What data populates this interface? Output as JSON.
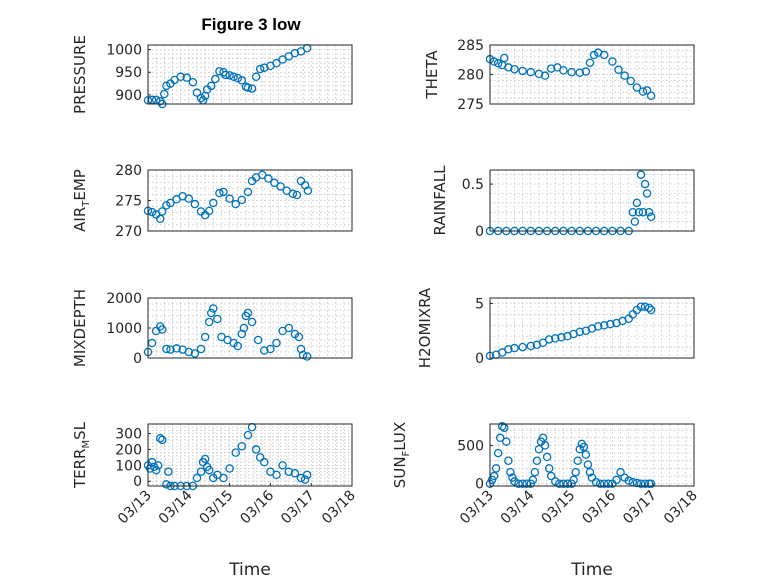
{
  "figure_title": "Figure 3 low",
  "chart_data": [
    {
      "type": "scatter",
      "id": "pressure",
      "ylabel": "PRESSURE",
      "title": "Figure 3 low",
      "xlabel": "",
      "xlim": [
        13,
        18.0
      ],
      "ylim": [
        880,
        1010
      ],
      "yticks": [
        900,
        950,
        1000
      ],
      "ytick_labels": [
        "900",
        "950",
        "1000"
      ],
      "grid": true,
      "series": [
        {
          "name": "PRESSURE",
          "x": [
            13.0,
            13.1,
            13.2,
            13.3,
            13.35,
            13.4,
            13.45,
            13.55,
            13.65,
            13.8,
            13.95,
            14.1,
            14.2,
            14.3,
            14.35,
            14.4,
            14.45,
            14.55,
            14.65,
            14.75,
            14.85,
            14.9,
            15.0,
            15.1,
            15.2,
            15.3,
            15.4,
            15.45,
            15.55,
            15.65,
            15.75,
            15.85,
            16.0,
            16.15,
            16.3,
            16.45,
            16.6,
            16.75,
            16.9
          ],
          "values": [
            888,
            889,
            889,
            886,
            880,
            902,
            920,
            925,
            933,
            940,
            938,
            928,
            905,
            893,
            888,
            898,
            912,
            920,
            935,
            952,
            950,
            944,
            943,
            940,
            937,
            932,
            918,
            916,
            914,
            940,
            957,
            960,
            964,
            970,
            978,
            985,
            992,
            996,
            1003
          ]
        }
      ]
    },
    {
      "type": "scatter",
      "id": "theta",
      "ylabel": "THETA",
      "xlabel": "",
      "xlim": [
        13,
        18.0
      ],
      "ylim": [
        275,
        285
      ],
      "yticks": [
        275,
        280,
        285
      ],
      "ytick_labels": [
        "275",
        "280",
        "285"
      ],
      "grid": true,
      "series": [
        {
          "name": "THETA",
          "x": [
            13.0,
            13.1,
            13.2,
            13.3,
            13.35,
            13.45,
            13.6,
            13.8,
            14.0,
            14.2,
            14.35,
            14.5,
            14.65,
            14.8,
            15.0,
            15.2,
            15.35,
            15.45,
            15.55,
            15.65,
            15.8,
            16.0,
            16.15,
            16.3,
            16.45,
            16.6,
            16.75,
            16.85,
            16.95
          ],
          "values": [
            282.6,
            282.2,
            281.9,
            281.6,
            282.8,
            281.2,
            280.9,
            280.6,
            280.4,
            280.1,
            279.8,
            281.0,
            281.2,
            280.7,
            280.4,
            280.3,
            280.5,
            282.0,
            283.3,
            283.7,
            283.3,
            282.2,
            280.8,
            279.8,
            278.9,
            277.8,
            277.1,
            277.3,
            276.4
          ]
        }
      ]
    },
    {
      "type": "scatter",
      "id": "air_temp",
      "ylabel": "AIR_TEMP",
      "ylabel_main": "AIR",
      "ylabel_sub": "T",
      "ylabel_rest": "EMP",
      "xlabel": "",
      "xlim": [
        13,
        18.0
      ],
      "ylim": [
        270,
        280
      ],
      "yticks": [
        270,
        275,
        280
      ],
      "ytick_labels": [
        "270",
        "275",
        "280"
      ],
      "grid": true,
      "series": [
        {
          "name": "AIR_TEMP",
          "x": [
            13.0,
            13.1,
            13.2,
            13.3,
            13.35,
            13.45,
            13.55,
            13.7,
            13.85,
            14.0,
            14.15,
            14.3,
            14.4,
            14.5,
            14.6,
            14.75,
            14.85,
            15.0,
            15.15,
            15.3,
            15.45,
            15.55,
            15.65,
            15.8,
            15.95,
            16.1,
            16.25,
            16.4,
            16.55,
            16.65,
            16.75,
            16.85,
            16.92
          ],
          "values": [
            273.3,
            273.1,
            272.7,
            272.0,
            273.2,
            274.2,
            274.6,
            275.2,
            275.7,
            275.3,
            274.4,
            273.2,
            272.6,
            273.3,
            274.6,
            276.2,
            276.4,
            275.3,
            274.4,
            275.1,
            276.4,
            278.2,
            278.8,
            279.2,
            278.6,
            277.9,
            277.3,
            276.6,
            276.1,
            275.9,
            278.2,
            277.5,
            276.6
          ]
        }
      ]
    },
    {
      "type": "scatter",
      "id": "rainfall",
      "ylabel": "RAINFALL",
      "xlabel": "",
      "xlim": [
        13,
        18.0
      ],
      "ylim": [
        0,
        0.65
      ],
      "yticks": [
        0,
        0.5
      ],
      "ytick_labels": [
        "0",
        "0.5"
      ],
      "grid": true,
      "series": [
        {
          "name": "RAINFALL",
          "x": [
            13.0,
            13.2,
            13.4,
            13.6,
            13.8,
            14.0,
            14.2,
            14.4,
            14.6,
            14.8,
            15.0,
            15.2,
            15.4,
            15.6,
            15.8,
            16.0,
            16.2,
            16.4,
            16.5,
            16.55,
            16.6,
            16.65,
            16.7,
            16.75,
            16.8,
            16.85,
            16.9,
            16.95
          ],
          "values": [
            0,
            0,
            0,
            0,
            0,
            0,
            0,
            0,
            0,
            0,
            0,
            0,
            0,
            0,
            0,
            0,
            0,
            0,
            0.2,
            0.1,
            0.3,
            0.2,
            0.6,
            0.2,
            0.5,
            0.4,
            0.2,
            0.15
          ]
        }
      ]
    },
    {
      "type": "scatter",
      "id": "mixdepth",
      "ylabel": "MIXDEPTH",
      "xlabel": "",
      "xlim": [
        13,
        18.0
      ],
      "ylim": [
        0,
        2000
      ],
      "yticks": [
        0,
        1000,
        2000
      ],
      "ytick_labels": [
        "0",
        "1000",
        "2000"
      ],
      "grid": true,
      "series": [
        {
          "name": "MIXDEPTH",
          "x": [
            13.0,
            13.1,
            13.2,
            13.3,
            13.35,
            13.45,
            13.55,
            13.7,
            13.85,
            14.0,
            14.15,
            14.3,
            14.4,
            14.5,
            14.55,
            14.6,
            14.7,
            14.8,
            14.95,
            15.1,
            15.2,
            15.3,
            15.35,
            15.4,
            15.45,
            15.55,
            15.7,
            15.85,
            16.0,
            16.15,
            16.3,
            16.45,
            16.6,
            16.7,
            16.75,
            16.8,
            16.9
          ],
          "values": [
            200,
            500,
            900,
            1050,
            950,
            300,
            280,
            320,
            280,
            200,
            150,
            300,
            700,
            1200,
            1500,
            1650,
            1300,
            700,
            600,
            500,
            400,
            800,
            1000,
            1400,
            1500,
            1200,
            600,
            250,
            300,
            500,
            900,
            1000,
            800,
            700,
            300,
            100,
            50
          ]
        }
      ]
    },
    {
      "type": "scatter",
      "id": "h2omixra",
      "ylabel": "H2OMIXRA",
      "xlabel": "",
      "xlim": [
        13,
        18.0
      ],
      "ylim": [
        0,
        5.5
      ],
      "yticks": [
        0,
        5
      ],
      "ytick_labels": [
        "0",
        "5"
      ],
      "grid": true,
      "series": [
        {
          "name": "H2OMIXRA",
          "x": [
            13.0,
            13.15,
            13.3,
            13.45,
            13.6,
            13.8,
            14.0,
            14.15,
            14.3,
            14.45,
            14.6,
            14.75,
            14.9,
            15.05,
            15.2,
            15.35,
            15.5,
            15.65,
            15.8,
            15.95,
            16.1,
            16.25,
            16.4,
            16.5,
            16.6,
            16.7,
            16.8,
            16.9,
            16.95
          ],
          "values": [
            0.2,
            0.3,
            0.5,
            0.8,
            0.9,
            1.0,
            1.1,
            1.2,
            1.4,
            1.7,
            1.8,
            1.9,
            2.0,
            2.2,
            2.4,
            2.5,
            2.7,
            2.9,
            3.0,
            3.1,
            3.2,
            3.4,
            3.6,
            4.0,
            4.4,
            4.7,
            4.7,
            4.6,
            4.4
          ]
        }
      ]
    },
    {
      "type": "scatter",
      "id": "terr_msl",
      "ylabel": "TERR_MSL",
      "ylabel_main": "TERR",
      "ylabel_sub": "M",
      "ylabel_rest": "SL",
      "xlabel": "Time",
      "xlim": [
        13,
        18.0
      ],
      "ylim": [
        -30,
        360
      ],
      "yticks": [
        0,
        100,
        200,
        300
      ],
      "ytick_labels": [
        "0",
        "100",
        "200",
        "300"
      ],
      "xticks": [
        13,
        14,
        15,
        16,
        17,
        18
      ],
      "xtick_labels": [
        "03/13",
        "03/14",
        "03/15",
        "03/16",
        "03/17",
        "03/18"
      ],
      "grid": true,
      "series": [
        {
          "name": "TERR_MSL",
          "x": [
            13.0,
            13.05,
            13.1,
            13.15,
            13.2,
            13.25,
            13.3,
            13.35,
            13.45,
            13.5,
            13.55,
            13.65,
            13.8,
            13.95,
            14.1,
            14.2,
            14.3,
            14.35,
            14.4,
            14.45,
            14.5,
            14.6,
            14.7,
            14.85,
            15.0,
            15.15,
            15.3,
            15.45,
            15.55,
            15.65,
            15.75,
            15.85,
            16.0,
            16.15,
            16.3,
            16.45,
            16.6,
            16.75,
            16.85,
            16.9
          ],
          "values": [
            100,
            80,
            120,
            90,
            70,
            100,
            270,
            260,
            -20,
            60,
            -30,
            -30,
            -30,
            -30,
            -30,
            20,
            60,
            120,
            140,
            90,
            70,
            20,
            40,
            20,
            80,
            180,
            220,
            290,
            340,
            200,
            150,
            120,
            60,
            40,
            100,
            60,
            50,
            20,
            10,
            40
          ]
        }
      ]
    },
    {
      "type": "scatter",
      "id": "sun_flux",
      "ylabel": "SUN_FLUX",
      "ylabel_main": "SUN",
      "ylabel_sub": "F",
      "ylabel_rest": "LUX",
      "xlabel": "Time",
      "xlim": [
        13,
        18.0
      ],
      "ylim": [
        -30,
        780
      ],
      "yticks": [
        0,
        500
      ],
      "ytick_labels": [
        "0",
        "500"
      ],
      "xticks": [
        13,
        14,
        15,
        16,
        17,
        18
      ],
      "xtick_labels": [
        "03/13",
        "03/14",
        "03/15",
        "03/16",
        "03/17",
        "03/18"
      ],
      "grid": true,
      "series": [
        {
          "name": "SUN_FLUX",
          "x": [
            13.0,
            13.05,
            13.1,
            13.15,
            13.2,
            13.25,
            13.3,
            13.35,
            13.4,
            13.45,
            13.5,
            13.55,
            13.6,
            13.7,
            13.8,
            13.9,
            14.0,
            14.05,
            14.1,
            14.15,
            14.2,
            14.25,
            14.3,
            14.35,
            14.4,
            14.45,
            14.5,
            14.6,
            14.7,
            14.8,
            14.9,
            15.0,
            15.05,
            15.1,
            15.15,
            15.2,
            15.25,
            15.3,
            15.35,
            15.4,
            15.45,
            15.5,
            15.6,
            15.7,
            15.8,
            15.9,
            16.0,
            16.1,
            16.2,
            16.3,
            16.4,
            16.5,
            16.6,
            16.7,
            16.8,
            16.9,
            16.95
          ],
          "values": [
            0,
            50,
            100,
            200,
            400,
            600,
            750,
            730,
            550,
            300,
            150,
            80,
            30,
            0,
            0,
            0,
            0,
            50,
            150,
            300,
            450,
            550,
            600,
            500,
            350,
            200,
            100,
            30,
            0,
            0,
            0,
            0,
            50,
            150,
            300,
            450,
            520,
            480,
            380,
            250,
            150,
            80,
            20,
            0,
            0,
            0,
            0,
            50,
            150,
            80,
            40,
            20,
            10,
            0,
            0,
            0,
            0
          ]
        }
      ]
    }
  ]
}
